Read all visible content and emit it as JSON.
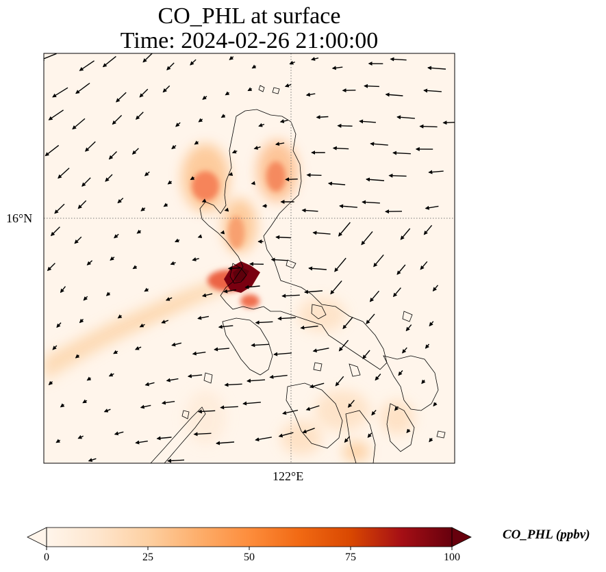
{
  "title": {
    "line1": "CO_PHL at surface",
    "line2": "Time: 2024-02-26 21:00:00"
  },
  "map": {
    "lat_label": "16°N",
    "lon_label": "122°E"
  },
  "colorbar": {
    "label": "CO_PHL (ppbv)",
    "ticks": [
      "0",
      "25",
      "50",
      "75",
      "100"
    ],
    "min": 0,
    "max": 100,
    "extend": "both",
    "colormap": [
      "#fff5eb",
      "#fee6ce",
      "#fdd0a2",
      "#fdae6b",
      "#fd8d3c",
      "#f16913",
      "#d94801",
      "#a50f15",
      "#67000d"
    ]
  }
}
